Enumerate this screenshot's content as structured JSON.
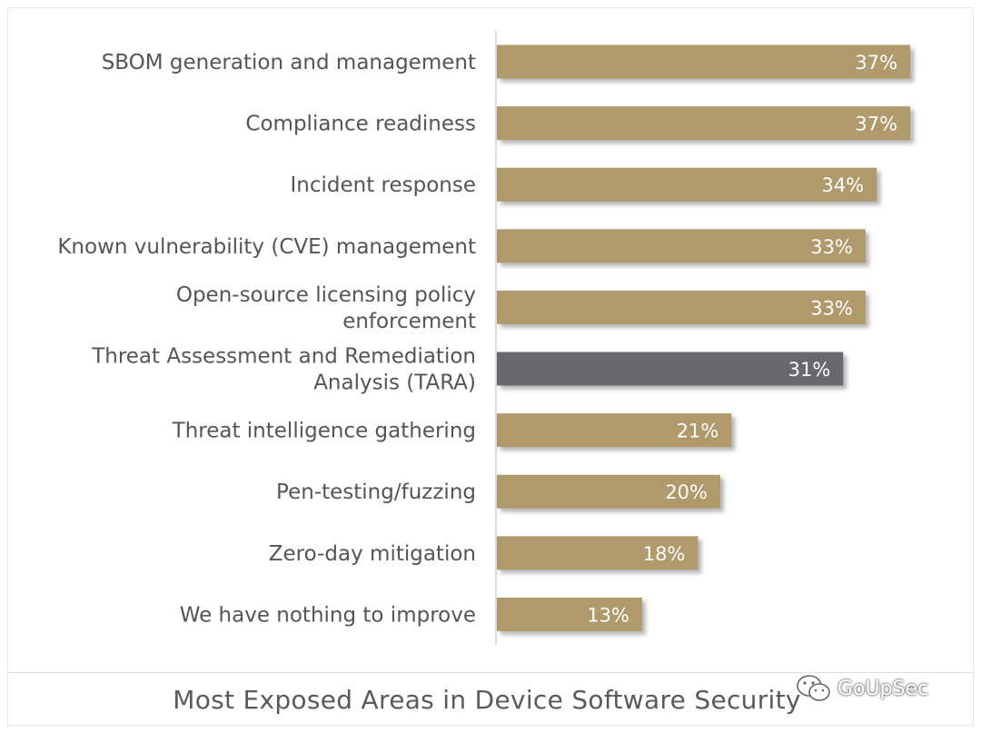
{
  "chart_data": {
    "type": "bar",
    "orientation": "horizontal",
    "title": "Most Exposed Areas in Device Software Security",
    "categories": [
      [
        "SBOM generation and management"
      ],
      [
        "Compliance readiness"
      ],
      [
        "Incident response"
      ],
      [
        "Known vulnerability (CVE) management"
      ],
      [
        "Open-source licensing policy",
        "enforcement"
      ],
      [
        "Threat Assessment and Remediation",
        "Analysis (TARA)"
      ],
      [
        "Threat intelligence gathering"
      ],
      [
        "Pen-testing/fuzzing"
      ],
      [
        "Zero-day mitigation"
      ],
      [
        "We have nothing to improve"
      ]
    ],
    "values": [
      37,
      37,
      34,
      33,
      33,
      31,
      21,
      20,
      18,
      13
    ],
    "value_labels": [
      "37%",
      "37%",
      "34%",
      "33%",
      "33%",
      "31%",
      "21%",
      "20%",
      "18%",
      "13%"
    ],
    "highlight_index": 5,
    "colors": {
      "bar": "#b09a6c",
      "highlight": "#6b676e",
      "shadow": "#8a8a8a",
      "axis": "#d0d0d0"
    },
    "xlim": [
      0,
      40
    ],
    "grid": false,
    "legend": "none"
  },
  "watermark": {
    "text": "GoUpSec",
    "icon": "wechat-icon"
  }
}
